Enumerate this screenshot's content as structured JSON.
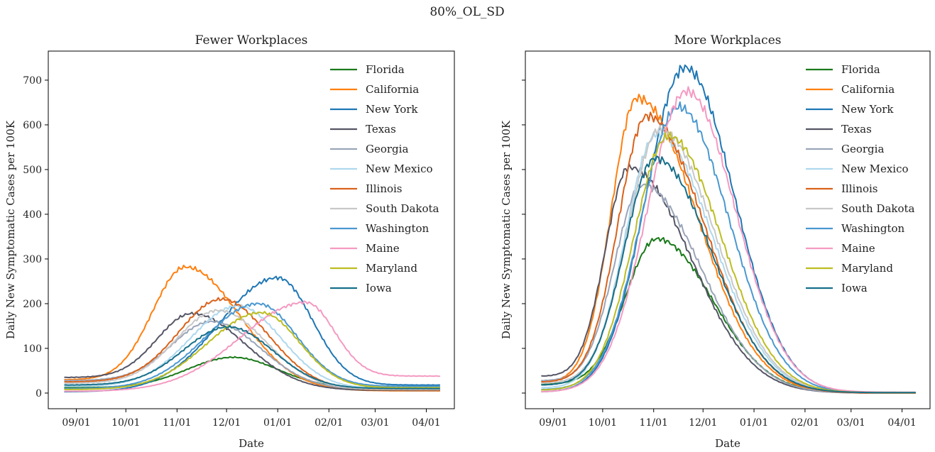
{
  "figure": {
    "suptitle": "80%_OL_SD"
  },
  "chart_data": [
    {
      "type": "line",
      "title": "Fewer Workplaces",
      "xlabel": "Date",
      "ylabel": "Daily New Symptomatic Cases per 100K",
      "x_start": "2020-08-25",
      "x_end": "2021-04-09",
      "xlim": [
        "2020-08-15",
        "2021-04-18"
      ],
      "ylim": [
        -35,
        765
      ],
      "yticks": [
        0,
        100,
        200,
        300,
        400,
        500,
        600,
        700
      ],
      "xticks": [
        {
          "date": "2020-09-01",
          "label": "09/01"
        },
        {
          "date": "2020-10-01",
          "label": "10/01"
        },
        {
          "date": "2020-11-01",
          "label": "11/01"
        },
        {
          "date": "2020-12-01",
          "label": "12/01"
        },
        {
          "date": "2021-01-01",
          "label": "01/01"
        },
        {
          "date": "2021-02-01",
          "label": "02/01"
        },
        {
          "date": "2021-03-01",
          "label": "03/01"
        },
        {
          "date": "2021-04-01",
          "label": "04/01"
        }
      ],
      "legend": {
        "loc": "upper-right"
      },
      "series": [
        {
          "name": "Florida",
          "color": "#1a7a1a",
          "start": 12,
          "peak": 80,
          "peak_date": "2020-12-05",
          "end": 12
        },
        {
          "name": "California",
          "color": "#ff7f0e",
          "start": 30,
          "peak": 282,
          "peak_date": "2020-11-06",
          "end": 5
        },
        {
          "name": "New York",
          "color": "#1f77b4",
          "start": 3,
          "peak": 258,
          "peak_date": "2021-01-01",
          "end": 18
        },
        {
          "name": "Texas",
          "color": "#555566",
          "start": 35,
          "peak": 178,
          "peak_date": "2020-11-10",
          "end": 6
        },
        {
          "name": "Georgia",
          "color": "#9aa5b8",
          "start": 28,
          "peak": 160,
          "peak_date": "2020-11-22",
          "end": 8
        },
        {
          "name": "New Mexico",
          "color": "#aed8ee",
          "start": 15,
          "peak": 195,
          "peak_date": "2020-12-08",
          "end": 10
        },
        {
          "name": "Illinois",
          "color": "#d9621b",
          "start": 25,
          "peak": 210,
          "peak_date": "2020-11-28",
          "end": 7
        },
        {
          "name": "South Dakota",
          "color": "#c8c8c8",
          "start": 22,
          "peak": 185,
          "peak_date": "2020-11-26",
          "end": 8
        },
        {
          "name": "Washington",
          "color": "#4a98d0",
          "start": 10,
          "peak": 200,
          "peak_date": "2020-12-20",
          "end": 15
        },
        {
          "name": "Maine",
          "color": "#f49ac2",
          "start": 4,
          "peak": 203,
          "peak_date": "2021-01-18",
          "end": 38
        },
        {
          "name": "Maryland",
          "color": "#bcbd22",
          "start": 8,
          "peak": 180,
          "peak_date": "2020-12-22",
          "end": 12
        },
        {
          "name": "Iowa",
          "color": "#17708a",
          "start": 18,
          "peak": 148,
          "peak_date": "2020-12-02",
          "end": 10
        }
      ]
    },
    {
      "type": "line",
      "title": "More Workplaces",
      "xlabel": "Date",
      "ylabel": "Daily New Symptomatic Cases per 100K",
      "x_start": "2020-08-25",
      "x_end": "2021-04-09",
      "xlim": [
        "2020-08-15",
        "2021-04-18"
      ],
      "ylim": [
        -35,
        765
      ],
      "yticks": [
        0,
        100,
        200,
        300,
        400,
        500,
        600,
        700
      ],
      "xticks": [
        {
          "date": "2020-09-01",
          "label": "09/01"
        },
        {
          "date": "2020-10-01",
          "label": "10/01"
        },
        {
          "date": "2020-11-01",
          "label": "11/01"
        },
        {
          "date": "2020-12-01",
          "label": "12/01"
        },
        {
          "date": "2021-01-01",
          "label": "01/01"
        },
        {
          "date": "2021-02-01",
          "label": "02/01"
        },
        {
          "date": "2021-03-01",
          "label": "03/01"
        },
        {
          "date": "2021-04-01",
          "label": "04/01"
        }
      ],
      "legend": {
        "loc": "upper-right"
      },
      "series": [
        {
          "name": "Florida",
          "color": "#1a7a1a",
          "start": 20,
          "peak": 345,
          "peak_date": "2020-11-03",
          "end": 1
        },
        {
          "name": "California",
          "color": "#ff7f0e",
          "start": 25,
          "peak": 660,
          "peak_date": "2020-10-22",
          "end": 0
        },
        {
          "name": "New York",
          "color": "#1f77b4",
          "start": 3,
          "peak": 728,
          "peak_date": "2020-11-20",
          "end": 1
        },
        {
          "name": "Texas",
          "color": "#555566",
          "start": 38,
          "peak": 505,
          "peak_date": "2020-10-17",
          "end": 0
        },
        {
          "name": "Georgia",
          "color": "#9aa5b8",
          "start": 28,
          "peak": 465,
          "peak_date": "2020-10-25",
          "end": 0
        },
        {
          "name": "New Mexico",
          "color": "#aed8ee",
          "start": 12,
          "peak": 580,
          "peak_date": "2020-11-03",
          "end": 1
        },
        {
          "name": "Illinois",
          "color": "#d9621b",
          "start": 25,
          "peak": 620,
          "peak_date": "2020-10-28",
          "end": 0
        },
        {
          "name": "South Dakota",
          "color": "#c8c8c8",
          "start": 22,
          "peak": 590,
          "peak_date": "2020-11-05",
          "end": 1
        },
        {
          "name": "Washington",
          "color": "#4a98d0",
          "start": 8,
          "peak": 640,
          "peak_date": "2020-11-16",
          "end": 1
        },
        {
          "name": "Maine",
          "color": "#f49ac2",
          "start": 3,
          "peak": 675,
          "peak_date": "2020-11-21",
          "end": 2
        },
        {
          "name": "Maryland",
          "color": "#bcbd22",
          "start": 7,
          "peak": 575,
          "peak_date": "2020-11-10",
          "end": 1
        },
        {
          "name": "Iowa",
          "color": "#17708a",
          "start": 18,
          "peak": 525,
          "peak_date": "2020-11-02",
          "end": 1
        }
      ]
    }
  ]
}
